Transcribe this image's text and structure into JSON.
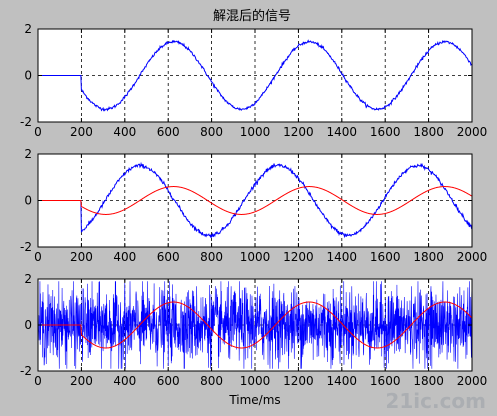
{
  "figure": {
    "title": "解混后的信号",
    "xlabel": "Time/ms",
    "watermark": "21ic.com"
  },
  "colors": {
    "background": "#c0c0c0",
    "axes_bg": "#ffffff",
    "blue": "#0000ff",
    "red": "#ff0000",
    "grid": "#000000"
  },
  "chart_data": [
    {
      "type": "line",
      "xlim": [
        0,
        2000
      ],
      "ylim": [
        -2,
        2
      ],
      "xticks": [
        0,
        200,
        400,
        600,
        800,
        1000,
        1200,
        1400,
        1600,
        1800,
        2000
      ],
      "yticks": [
        -2,
        0,
        2
      ],
      "grid": true,
      "series": [
        {
          "color": "blue",
          "start": 200,
          "amp": 1.45,
          "period": 625,
          "phase_peak": 625,
          "noise": 0.03
        }
      ]
    },
    {
      "type": "line",
      "xlim": [
        0,
        2000
      ],
      "ylim": [
        -2,
        2
      ],
      "xticks": [
        0,
        200,
        400,
        600,
        800,
        1000,
        1200,
        1400,
        1600,
        1800,
        2000
      ],
      "yticks": [
        -2,
        0,
        2
      ],
      "grid": true,
      "series": [
        {
          "color": "blue",
          "start": 200,
          "amp": 1.5,
          "period": 640,
          "phase_peak": 470,
          "noise": 0.04
        },
        {
          "color": "red",
          "start": 200,
          "amp": 0.6,
          "period": 625,
          "phase_peak": 625,
          "noise": 0.0
        }
      ]
    },
    {
      "type": "line",
      "xlim": [
        0,
        2000
      ],
      "ylim": [
        -2,
        2
      ],
      "xticks": [
        0,
        200,
        400,
        600,
        800,
        1000,
        1200,
        1400,
        1600,
        1800,
        2000
      ],
      "yticks": [
        -2,
        0,
        2
      ],
      "grid": true,
      "series": [
        {
          "color": "blue",
          "start": 0,
          "amp": 1.7,
          "period": 0,
          "phase_peak": 0,
          "noise": 1.0
        },
        {
          "color": "red",
          "start": 200,
          "amp": 1.0,
          "period": 625,
          "phase_peak": 625,
          "noise": 0.0
        }
      ]
    }
  ]
}
